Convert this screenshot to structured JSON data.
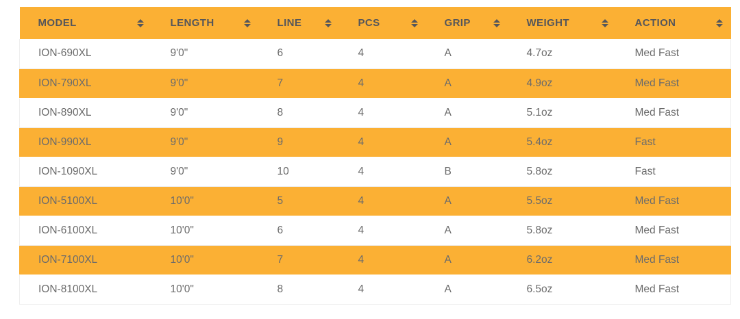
{
  "table": {
    "columns": [
      {
        "id": "model",
        "label": "MODEL"
      },
      {
        "id": "length",
        "label": "LENGTH"
      },
      {
        "id": "line",
        "label": "LINE"
      },
      {
        "id": "pcs",
        "label": "PCS"
      },
      {
        "id": "grip",
        "label": "GRIP"
      },
      {
        "id": "weight",
        "label": "WEIGHT"
      },
      {
        "id": "action",
        "label": "ACTION"
      }
    ],
    "rows": [
      {
        "model": "ION-690XL",
        "length": "9'0\"",
        "line": "6",
        "pcs": "4",
        "grip": "A",
        "weight": "4.7oz",
        "action": "Med Fast"
      },
      {
        "model": "ION-790XL",
        "length": "9'0\"",
        "line": "7",
        "pcs": "4",
        "grip": "A",
        "weight": "4.9oz",
        "action": "Med Fast"
      },
      {
        "model": "ION-890XL",
        "length": "9'0\"",
        "line": "8",
        "pcs": "4",
        "grip": "A",
        "weight": "5.1oz",
        "action": "Med Fast"
      },
      {
        "model": "ION-990XL",
        "length": "9'0\"",
        "line": "9",
        "pcs": "4",
        "grip": "A",
        "weight": "5.4oz",
        "action": "Fast"
      },
      {
        "model": "ION-1090XL",
        "length": "9'0\"",
        "line": "10",
        "pcs": "4",
        "grip": "B",
        "weight": "5.8oz",
        "action": "Fast"
      },
      {
        "model": "ION-5100XL",
        "length": "10'0\"",
        "line": "5",
        "pcs": "4",
        "grip": "A",
        "weight": "5.5oz",
        "action": "Med Fast"
      },
      {
        "model": "ION-6100XL",
        "length": "10'0\"",
        "line": "6",
        "pcs": "4",
        "grip": "A",
        "weight": "5.8oz",
        "action": "Med Fast"
      },
      {
        "model": "ION-7100XL",
        "length": "10'0\"",
        "line": "7",
        "pcs": "4",
        "grip": "A",
        "weight": "6.2oz",
        "action": "Med Fast"
      },
      {
        "model": "ION-8100XL",
        "length": "10'0\"",
        "line": "8",
        "pcs": "4",
        "grip": "A",
        "weight": "6.5oz",
        "action": "Med Fast"
      }
    ]
  },
  "icons": {
    "sort": "sort-icon"
  },
  "colors": {
    "accent": "#FBB034",
    "header_text": "#55565A",
    "body_text": "#6B6B6B",
    "row_border": "#EDEDED"
  }
}
